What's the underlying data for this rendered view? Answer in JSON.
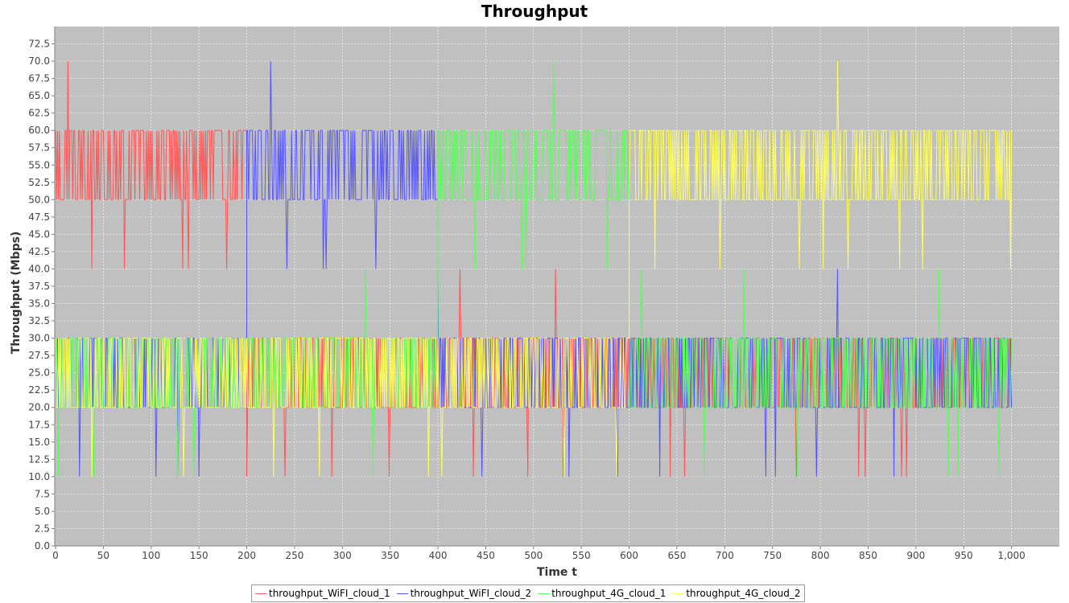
{
  "chart_data": {
    "type": "line",
    "title": "Throughput",
    "xlabel": "Time t",
    "ylabel": "Throughput (Mbps)",
    "xlim": [
      0,
      1050
    ],
    "ylim": [
      0,
      75
    ],
    "x_ticks": [
      "0",
      "50",
      "100",
      "150",
      "200",
      "250",
      "300",
      "350",
      "400",
      "450",
      "500",
      "550",
      "600",
      "650",
      "700",
      "750",
      "800",
      "850",
      "900",
      "950",
      "1,000"
    ],
    "y_ticks": [
      "0.0",
      "2.5",
      "5.0",
      "7.5",
      "10.0",
      "12.5",
      "15.0",
      "17.5",
      "20.0",
      "22.5",
      "25.0",
      "27.5",
      "30.0",
      "32.5",
      "35.0",
      "37.5",
      "40.0",
      "42.5",
      "45.0",
      "47.5",
      "50.0",
      "52.5",
      "55.0",
      "57.5",
      "60.0",
      "62.5",
      "65.0",
      "67.5",
      "70.0",
      "72.5"
    ],
    "grid": true,
    "legend_position": "bottom",
    "background": "#c0c0c0",
    "series": [
      {
        "name": "throughput_WiFI_cloud_1",
        "color": "#ff5555",
        "segments": [
          {
            "x_start": 0,
            "x_end": 200,
            "low": 50,
            "high": 60,
            "dips": [
              [
                13,
                70
              ],
              [
                38,
                40
              ],
              [
                72,
                40
              ],
              [
                133,
                40
              ],
              [
                139,
                40
              ],
              [
                179,
                40
              ]
            ]
          },
          {
            "x_start": 200,
            "x_end": 1000,
            "low": 20,
            "high": 30,
            "dips": [
              [
                200,
                10
              ],
              [
                240,
                10
              ],
              [
                289,
                10
              ],
              [
                349,
                10
              ],
              [
                423,
                40
              ],
              [
                437,
                10
              ],
              [
                494,
                10
              ],
              [
                523,
                40
              ],
              [
                531,
                10
              ],
              [
                643,
                10
              ],
              [
                658,
                10
              ],
              [
                775,
                10
              ],
              [
                840,
                10
              ],
              [
                847,
                10
              ],
              [
                885,
                10
              ],
              [
                890,
                10
              ]
            ]
          }
        ]
      },
      {
        "name": "throughput_WiFI_cloud_2",
        "color": "#5555ff",
        "segments": [
          {
            "x_start": 0,
            "x_end": 200,
            "low": 20,
            "high": 30,
            "dips": [
              [
                25,
                10
              ],
              [
                105,
                10
              ],
              [
                128,
                10
              ],
              [
                150,
                10
              ]
            ]
          },
          {
            "x_start": 200,
            "x_end": 400,
            "low": 50,
            "high": 60,
            "dips": [
              [
                225,
                70
              ],
              [
                242,
                40
              ],
              [
                280,
                40
              ],
              [
                283,
                40
              ],
              [
                335,
                40
              ]
            ]
          },
          {
            "x_start": 400,
            "x_end": 1000,
            "low": 20,
            "high": 30,
            "dips": [
              [
                400,
                40
              ],
              [
                446,
                10
              ],
              [
                537,
                10
              ],
              [
                588,
                10
              ],
              [
                632,
                10
              ],
              [
                743,
                10
              ],
              [
                753,
                10
              ],
              [
                796,
                10
              ],
              [
                818,
                40
              ],
              [
                877,
                10
              ]
            ]
          }
        ]
      },
      {
        "name": "throughput_4G_cloud_1",
        "color": "#55ff55",
        "segments": [
          {
            "x_start": 0,
            "x_end": 400,
            "low": 20,
            "high": 30,
            "dips": [
              [
                3,
                10
              ],
              [
                40,
                10
              ],
              [
                128,
                10
              ],
              [
                145,
                10
              ],
              [
                324,
                40
              ],
              [
                332,
                10
              ],
              [
                410,
                10
              ]
            ]
          },
          {
            "x_start": 400,
            "x_end": 600,
            "low": 50,
            "high": 60,
            "dips": [
              [
                439,
                40
              ],
              [
                488,
                40
              ],
              [
                492,
                40
              ],
              [
                521,
                70
              ],
              [
                577,
                40
              ]
            ]
          },
          {
            "x_start": 600,
            "x_end": 1000,
            "low": 20,
            "high": 30,
            "dips": [
              [
                613,
                40
              ],
              [
                679,
                10
              ],
              [
                720,
                40
              ],
              [
                776,
                10
              ],
              [
                924,
                40
              ],
              [
                934,
                10
              ],
              [
                944,
                10
              ],
              [
                987,
                10
              ]
            ]
          }
        ]
      },
      {
        "name": "throughput_4G_cloud_2",
        "color": "#ffff55",
        "segments": [
          {
            "x_start": 0,
            "x_end": 600,
            "low": 20,
            "high": 30,
            "dips": [
              [
                38,
                10
              ],
              [
                134,
                10
              ],
              [
                228,
                10
              ],
              [
                276,
                10
              ],
              [
                390,
                10
              ],
              [
                404,
                10
              ],
              [
                532,
                10
              ],
              [
                587,
                10
              ]
            ]
          },
          {
            "x_start": 600,
            "x_end": 1000,
            "low": 50,
            "high": 60,
            "dips": [
              [
                627,
                40
              ],
              [
                695,
                40
              ],
              [
                778,
                40
              ],
              [
                803,
                40
              ],
              [
                829,
                40
              ],
              [
                818,
                70
              ],
              [
                883,
                40
              ],
              [
                907,
                40
              ],
              [
                999,
                40
              ]
            ]
          }
        ]
      }
    ]
  }
}
